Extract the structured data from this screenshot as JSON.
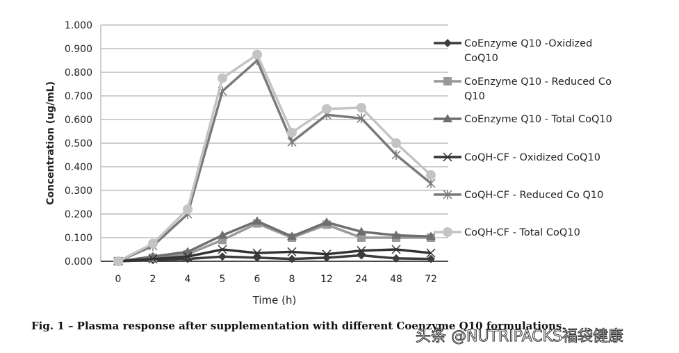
{
  "chart_data": {
    "type": "line",
    "title": "",
    "xlabel": "Time (h)",
    "ylabel": "Concentration (ug/mL)",
    "ylim": [
      0,
      1.0
    ],
    "yticks": [
      "0.000",
      "0.100",
      "0.200",
      "0.300",
      "0.400",
      "0.500",
      "0.600",
      "0.700",
      "0.800",
      "0.900",
      "1.000"
    ],
    "categories": [
      "0",
      "2",
      "4",
      "5",
      "6",
      "8",
      "12",
      "24",
      "48",
      "72"
    ],
    "grid": true,
    "legend_position": "right",
    "series": [
      {
        "name": "CoEnzyme Q10 -Oxidized CoQ10",
        "marker": "diamond",
        "color": "#3c3c3c",
        "values": [
          0,
          0.005,
          0.01,
          0.02,
          0.015,
          0.01,
          0.015,
          0.025,
          0.012,
          0.01
        ]
      },
      {
        "name": "CoEnzyme Q10 - Reduced Co Q10",
        "marker": "square",
        "color": "#999999",
        "values": [
          0,
          0.015,
          0.03,
          0.09,
          0.16,
          0.1,
          0.155,
          0.1,
          0.1,
          0.1
        ]
      },
      {
        "name": "CoEnzyme Q10 - Total CoQ10",
        "marker": "triangle",
        "color": "#6e6e6e",
        "values": [
          0,
          0.02,
          0.04,
          0.11,
          0.17,
          0.105,
          0.165,
          0.125,
          0.11,
          0.105
        ]
      },
      {
        "name": "CoQH-CF - Oxidized CoQ10",
        "marker": "x",
        "color": "#333333",
        "values": [
          0,
          0.01,
          0.02,
          0.05,
          0.035,
          0.04,
          0.03,
          0.045,
          0.05,
          0.035
        ]
      },
      {
        "name": "CoQH-CF - Reduced Co Q10",
        "marker": "asterisk",
        "color": "#7a7a7a",
        "values": [
          0,
          0.065,
          0.2,
          0.72,
          0.85,
          0.505,
          0.62,
          0.605,
          0.45,
          0.33
        ]
      },
      {
        "name": "CoQH-CF - Total CoQ10",
        "marker": "circle",
        "color": "#c4c4c4",
        "values": [
          0,
          0.075,
          0.22,
          0.775,
          0.875,
          0.545,
          0.645,
          0.65,
          0.5,
          0.365
        ]
      }
    ]
  },
  "caption": "Fig. 1 – Plasma response after supplementation with different Coenzyme Q10 formulations.",
  "watermark": "头条 @NUTRIPACKS福袋健康"
}
